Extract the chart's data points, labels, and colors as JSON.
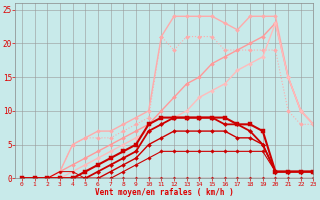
{
  "background_color": "#c8eaea",
  "grid_color": "#999999",
  "xlabel": "Vent moyen/en rafales ( km/h )",
  "tick_color": "#dd0000",
  "xlim": [
    -0.5,
    23
  ],
  "ylim": [
    0,
    26
  ],
  "yticks": [
    0,
    5,
    10,
    15,
    20,
    25
  ],
  "xticks": [
    0,
    1,
    2,
    3,
    4,
    5,
    6,
    7,
    8,
    9,
    10,
    11,
    12,
    13,
    14,
    15,
    16,
    17,
    18,
    19,
    20,
    21,
    22,
    23
  ],
  "lines": [
    {
      "x": [
        0,
        1,
        2,
        3,
        4,
        5,
        6,
        7,
        8,
        9,
        10,
        11,
        12,
        13,
        14,
        15,
        16,
        17,
        18,
        19,
        20,
        21,
        22,
        23
      ],
      "y": [
        0,
        0,
        0,
        1,
        5,
        6,
        6,
        6,
        7,
        8,
        9,
        21,
        19,
        21,
        21,
        21,
        19,
        19,
        19,
        19,
        19,
        10,
        8,
        8
      ],
      "color": "#ffaaaa",
      "lw": 0.8,
      "ls": "dotted",
      "marker": "D",
      "ms": 2.0
    },
    {
      "x": [
        0,
        1,
        2,
        3,
        4,
        5,
        6,
        7,
        8,
        9,
        10,
        11,
        12,
        13,
        14,
        15,
        16,
        17,
        18,
        19,
        20,
        21,
        22,
        23
      ],
      "y": [
        0,
        0,
        0,
        1,
        5,
        6,
        7,
        7,
        8,
        9,
        10,
        21,
        24,
        24,
        24,
        24,
        23,
        22,
        24,
        24,
        24,
        15,
        10,
        8
      ],
      "color": "#ffaaaa",
      "lw": 1.0,
      "ls": "solid",
      "marker": "D",
      "ms": 2.0
    },
    {
      "x": [
        0,
        1,
        2,
        3,
        4,
        5,
        6,
        7,
        8,
        9,
        10,
        11,
        12,
        13,
        14,
        15,
        16,
        17,
        18,
        19,
        20,
        21,
        22,
        23
      ],
      "y": [
        0,
        0,
        0,
        1,
        2,
        3,
        4,
        5,
        6,
        7,
        8,
        10,
        12,
        14,
        15,
        17,
        18,
        19,
        20,
        21,
        23,
        15,
        10,
        8
      ],
      "color": "#ff9999",
      "lw": 1.0,
      "ls": "solid",
      "marker": "D",
      "ms": 2.0
    },
    {
      "x": [
        0,
        1,
        2,
        3,
        4,
        5,
        6,
        7,
        8,
        9,
        10,
        11,
        12,
        13,
        14,
        15,
        16,
        17,
        18,
        19,
        20,
        21,
        22,
        23
      ],
      "y": [
        0,
        0,
        0,
        0,
        1,
        2,
        3,
        4,
        5,
        6,
        7,
        8,
        9,
        10,
        12,
        13,
        14,
        16,
        17,
        18,
        23,
        15,
        10,
        8
      ],
      "color": "#ffbbbb",
      "lw": 1.0,
      "ls": "solid",
      "marker": "D",
      "ms": 2.0
    },
    {
      "x": [
        0,
        1,
        2,
        3,
        4,
        5,
        6,
        7,
        8,
        9,
        10,
        11,
        12,
        13,
        14,
        15,
        16,
        17,
        18,
        19,
        20,
        21,
        22,
        23
      ],
      "y": [
        0,
        0,
        0,
        0,
        0,
        1,
        2,
        3,
        4,
        5,
        8,
        9,
        9,
        9,
        9,
        9,
        9,
        8,
        8,
        7,
        1,
        1,
        1,
        1
      ],
      "color": "#cc0000",
      "lw": 1.5,
      "ls": "solid",
      "marker": "s",
      "ms": 2.5
    },
    {
      "x": [
        0,
        1,
        2,
        3,
        4,
        5,
        6,
        7,
        8,
        9,
        10,
        11,
        12,
        13,
        14,
        15,
        16,
        17,
        18,
        19,
        20,
        21,
        22,
        23
      ],
      "y": [
        0,
        0,
        0,
        0,
        0,
        0,
        1,
        2,
        3,
        4,
        7,
        8,
        9,
        9,
        9,
        9,
        8,
        8,
        7,
        5,
        1,
        1,
        1,
        1
      ],
      "color": "#cc0000",
      "lw": 1.3,
      "ls": "solid",
      "marker": "D",
      "ms": 2.2
    },
    {
      "x": [
        0,
        1,
        2,
        3,
        4,
        5,
        6,
        7,
        8,
        9,
        10,
        11,
        12,
        13,
        14,
        15,
        16,
        17,
        18,
        19,
        20,
        21,
        22,
        23
      ],
      "y": [
        0,
        0,
        0,
        0,
        0,
        0,
        0,
        1,
        2,
        3,
        5,
        6,
        7,
        7,
        7,
        7,
        7,
        6,
        6,
        5,
        1,
        1,
        1,
        1
      ],
      "color": "#cc0000",
      "lw": 1.0,
      "ls": "solid",
      "marker": "D",
      "ms": 2.0
    },
    {
      "x": [
        0,
        1,
        2,
        3,
        4,
        5,
        6,
        7,
        8,
        9,
        10,
        11,
        12,
        13,
        14,
        15,
        16,
        17,
        18,
        19,
        20,
        21,
        22,
        23
      ],
      "y": [
        0,
        0,
        0,
        0,
        0,
        0,
        0,
        0,
        1,
        2,
        3,
        4,
        4,
        4,
        4,
        4,
        4,
        4,
        4,
        4,
        1,
        1,
        1,
        1
      ],
      "color": "#cc0000",
      "lw": 0.8,
      "ls": "solid",
      "marker": "D",
      "ms": 1.8
    },
    {
      "x": [
        0,
        1,
        2,
        3,
        4,
        5,
        6,
        7,
        8,
        9,
        10,
        11,
        12,
        13,
        14,
        15,
        16,
        17,
        18,
        19,
        20,
        21,
        22,
        23
      ],
      "y": [
        0,
        0,
        0,
        1,
        1,
        0,
        0,
        0,
        0,
        0,
        0,
        0,
        0,
        0,
        0,
        0,
        0,
        0,
        0,
        0,
        0,
        0,
        0,
        0
      ],
      "color": "#cc0000",
      "lw": 0.7,
      "ls": "solid",
      "marker": "D",
      "ms": 1.5
    }
  ]
}
